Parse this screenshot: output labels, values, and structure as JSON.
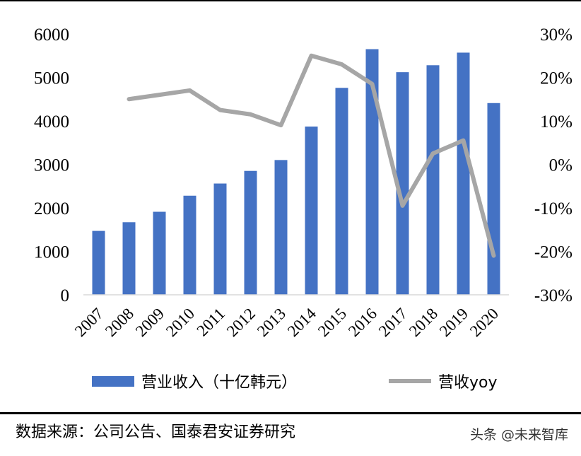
{
  "chart_data": {
    "type": "bar+line",
    "categories": [
      "2007",
      "2008",
      "2009",
      "2010",
      "2011",
      "2012",
      "2013",
      "2014",
      "2015",
      "2016",
      "2017",
      "2018",
      "2019",
      "2020"
    ],
    "series": [
      {
        "name": "营业收入（十亿韩元）",
        "type": "bar",
        "axis": "left",
        "color": "#4472C4",
        "values": [
          1470,
          1670,
          1910,
          2280,
          2560,
          2850,
          3100,
          3870,
          4760,
          5650,
          5120,
          5280,
          5570,
          4410
        ]
      },
      {
        "name": "营收yoy",
        "type": "line",
        "axis": "right",
        "color": "#A6A6A6",
        "unit": "%",
        "values": [
          null,
          15,
          16,
          17,
          12.5,
          11.5,
          9,
          25,
          23,
          18.5,
          -9.5,
          2.5,
          5.5,
          -21
        ]
      }
    ],
    "left_axis": {
      "ticks": [
        "0",
        "1000",
        "2000",
        "3000",
        "4000",
        "5000",
        "6000"
      ],
      "ylim": [
        0,
        6000
      ]
    },
    "right_axis": {
      "ticks": [
        "-30%",
        "-20%",
        "-10%",
        "0%",
        "10%",
        "20%",
        "30%"
      ],
      "ylim": [
        -30,
        30
      ]
    },
    "grid": false,
    "legend_position": "bottom"
  },
  "footer": {
    "source": "数据来源：公司公告、国泰君安证券研究",
    "watermark": "头条 @未来智库"
  }
}
